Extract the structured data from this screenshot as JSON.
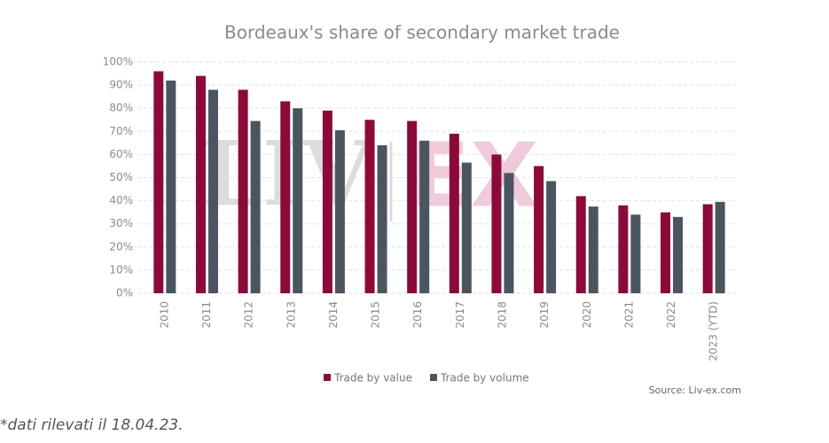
{
  "chart_data": {
    "type": "bar",
    "title": "Bordeaux's share of secondary market trade",
    "categories": [
      "2010",
      "2011",
      "2012",
      "2013",
      "2014",
      "2015",
      "2016",
      "2017",
      "2018",
      "2019",
      "2020",
      "2021",
      "2022",
      "2023 (YTD)"
    ],
    "series": [
      {
        "name": "Trade by value",
        "color": "#8b0a3a",
        "values": [
          96,
          94,
          88,
          83,
          79,
          75,
          74.5,
          69,
          60,
          55,
          42,
          38,
          35,
          38.5
        ]
      },
      {
        "name": "Trade by volume",
        "color": "#4a5560",
        "values": [
          92,
          88,
          74.5,
          80,
          70.5,
          64,
          66,
          56.5,
          52,
          48.5,
          37.5,
          34,
          33,
          39.5
        ]
      }
    ],
    "ylim": [
      0,
      100
    ],
    "yticks": [
      {
        "value": 0,
        "label": "0%"
      },
      {
        "value": 10,
        "label": "10%"
      },
      {
        "value": 20,
        "label": "20%"
      },
      {
        "value": 30,
        "label": "30%"
      },
      {
        "value": 40,
        "label": "40%"
      },
      {
        "value": 50,
        "label": "50%"
      },
      {
        "value": 60,
        "label": "60%"
      },
      {
        "value": 70,
        "label": "70%"
      },
      {
        "value": 80,
        "label": "80%"
      },
      {
        "value": 90,
        "label": "90%"
      },
      {
        "value": 100,
        "label": "100%"
      }
    ],
    "grid": true,
    "legend": "bottom",
    "source": "Source: Liv-ex.com",
    "watermark": [
      "LIV",
      "EX"
    ]
  },
  "footnote": "*dati rilevati il 18.04.23."
}
